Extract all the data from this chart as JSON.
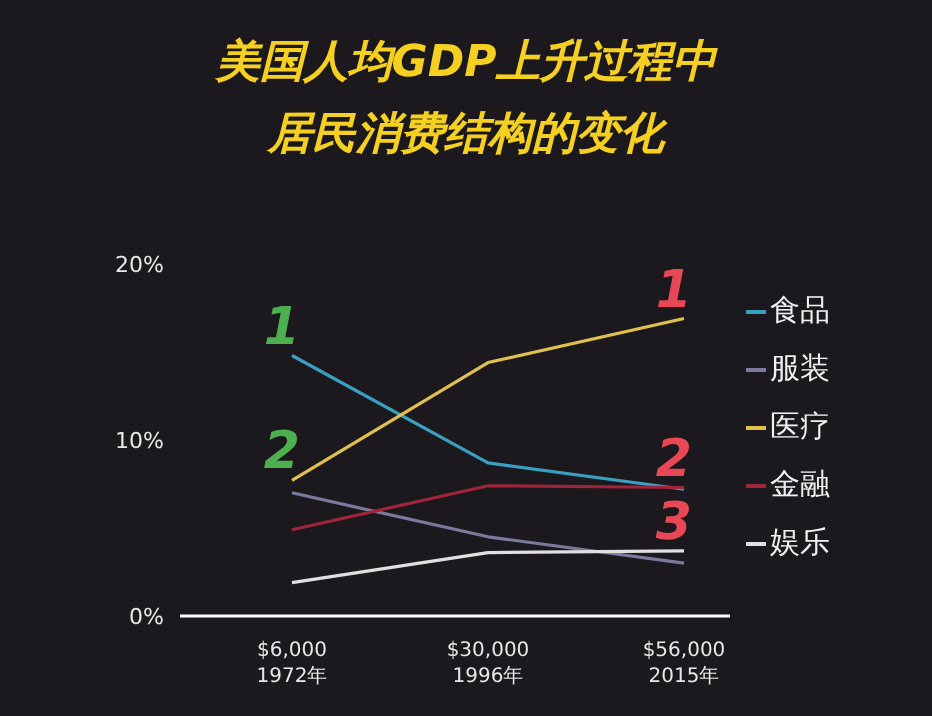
{
  "chart_data": {
    "type": "line",
    "title": "美国人均GDP上升过程中居民消费结构的变化",
    "categories": [
      "$6,000\n1972年",
      "$30,000\n1996年",
      "$56,000\n2015年"
    ],
    "series": [
      {
        "name": "食品",
        "color": "#3a9fc0",
        "values": [
          14.8,
          8.7,
          7.2
        ]
      },
      {
        "name": "服装",
        "color": "#7a7a9e",
        "values": [
          7.0,
          4.5,
          3.0
        ]
      },
      {
        "name": "医疗",
        "color": "#e0c050",
        "values": [
          7.7,
          14.4,
          16.9
        ]
      },
      {
        "name": "金融",
        "color": "#a0243a",
        "values": [
          4.9,
          7.4,
          7.3
        ]
      },
      {
        "name": "娱乐",
        "color": "#e0e0e0",
        "values": [
          1.9,
          3.6,
          3.7
        ]
      }
    ],
    "ylim": [
      0,
      20
    ],
    "yticks": [
      {
        "value": 0,
        "label": "0%"
      },
      {
        "value": 10,
        "label": "10%"
      },
      {
        "value": 20,
        "label": "20%"
      }
    ],
    "annotations": [
      {
        "text": "1",
        "x": "$6,000\n1972年",
        "y": 14.8
      },
      {
        "text": "2",
        "x": "$6,000\n1972年",
        "y": 7.7
      },
      {
        "text": "1",
        "x": "$56,000\n2015年",
        "y": 16.9
      },
      {
        "text": "2",
        "x": "$56,000\n2015年",
        "y": 7.3
      },
      {
        "text": "3",
        "x": "$56,000\n2015年",
        "y": 3.7
      }
    ],
    "legend": "right",
    "grid": false,
    "marker": "none",
    "line_style": "solid"
  }
}
